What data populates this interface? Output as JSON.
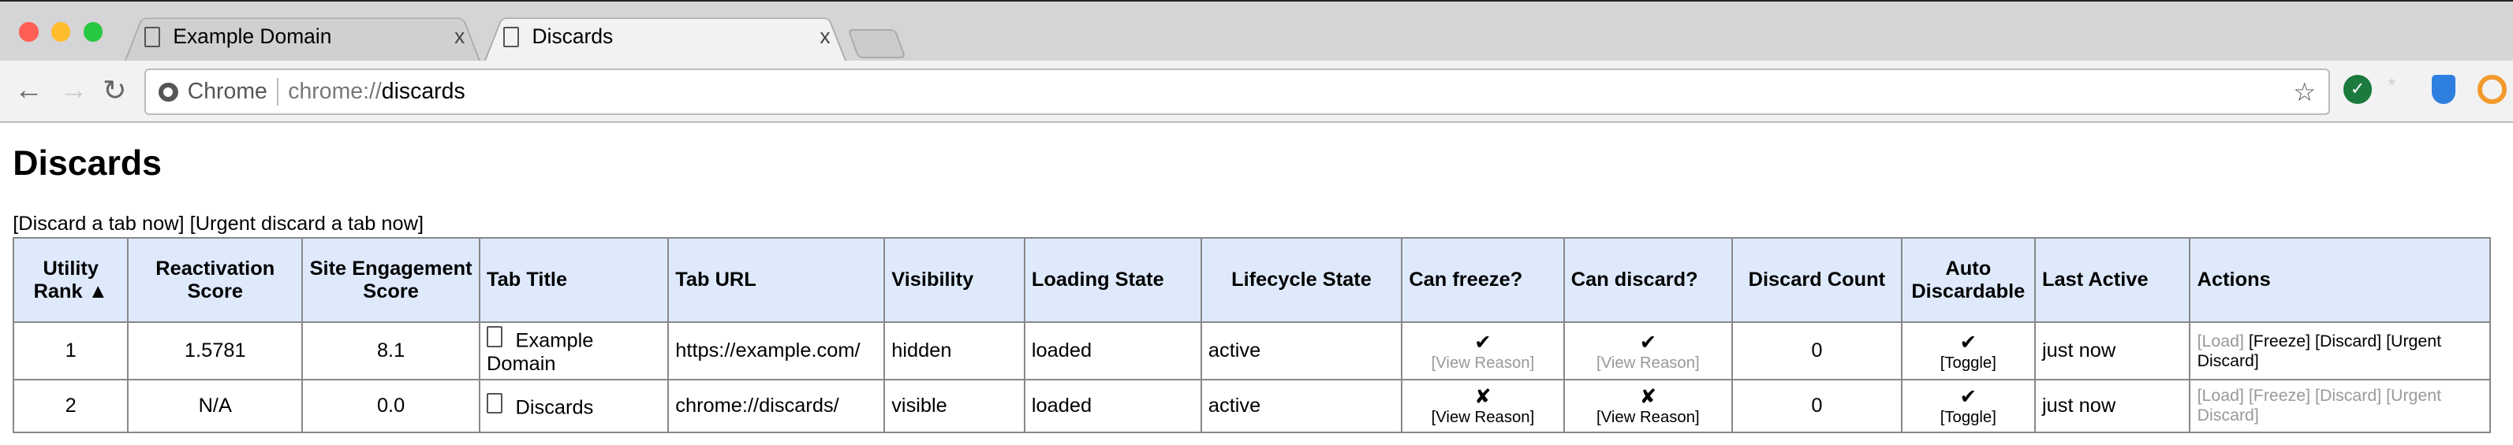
{
  "browser": {
    "tabs": [
      {
        "title": "Example Domain",
        "active": false
      },
      {
        "title": "Discards",
        "active": true
      }
    ],
    "close_glyph": "x",
    "omnibox": {
      "scheme_label": "Chrome",
      "url_prefix": "chrome://",
      "url_host": "discards"
    },
    "extensions": [
      "green-check-extension-icon",
      "asterisk-extension-icon",
      "blue-shield-extension-icon",
      "orange-keyhole-extension-icon"
    ],
    "traffic_lights": [
      "#fe5f57",
      "#febc2e",
      "#28c840"
    ]
  },
  "page": {
    "title": "Discards",
    "links": [
      "[Discard a tab now]",
      "[Urgent discard a tab now]"
    ],
    "table": {
      "headers": [
        "Utility Rank ▲",
        "Reactivation Score",
        "Site Engagement Score",
        "Tab Title",
        "Tab URL",
        "Visibility",
        "Loading State",
        "Lifecycle State",
        "Can freeze?",
        "Can discard?",
        "Discard Count",
        "Auto Discardable",
        "Last Active",
        "Actions"
      ],
      "rows": [
        {
          "rank": "1",
          "reactivation": "1.5781",
          "engagement": "8.1",
          "title": "Example Domain",
          "url": "https://example.com/",
          "visibility": "hidden",
          "loading": "loaded",
          "lifecycle": "active",
          "can_freeze": "✔",
          "freeze_reason": "[View Reason]",
          "can_discard": "✔",
          "discard_reason": "[View Reason]",
          "discard_count": "0",
          "auto_discardable": "✔",
          "toggle": "[Toggle]",
          "last_active": "just now",
          "actions": [
            "[Load]",
            "[Freeze]",
            "[Discard]",
            "[Urgent Discard]"
          ],
          "actions_enabled": [
            false,
            true,
            true,
            true
          ],
          "reasons_enabled": false
        },
        {
          "rank": "2",
          "reactivation": "N/A",
          "engagement": "0.0",
          "title": "Discards",
          "url": "chrome://discards/",
          "visibility": "visible",
          "loading": "loaded",
          "lifecycle": "active",
          "can_freeze": "✘",
          "freeze_reason": "[View Reason]",
          "can_discard": "✘",
          "discard_reason": "[View Reason]",
          "discard_count": "0",
          "auto_discardable": "✔",
          "toggle": "[Toggle]",
          "last_active": "just now",
          "actions": [
            "[Load]",
            "[Freeze]",
            "[Discard]",
            "[Urgent Discard]"
          ],
          "actions_enabled": [
            false,
            false,
            false,
            false
          ],
          "reasons_enabled": true
        }
      ]
    }
  },
  "colors": {
    "header_bg": "#deeafc",
    "disabled_text": "#999999"
  }
}
